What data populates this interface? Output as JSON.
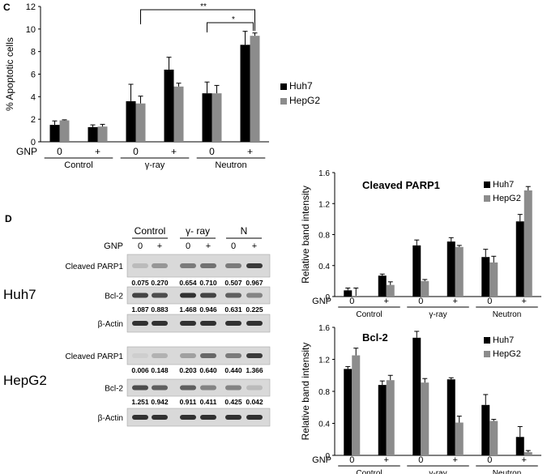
{
  "panels": {
    "c": "C",
    "d": "D"
  },
  "colors": {
    "huh7": "#000000",
    "hepg2": "#8c8c8c",
    "axis": "#000000"
  },
  "chart_data": [
    {
      "id": "apoptotic",
      "type": "bar",
      "ylabel": "% Apoptotic cells",
      "ylim": [
        0,
        12
      ],
      "yticks": [
        "0",
        "2",
        "4",
        "6",
        "8",
        "10",
        "12"
      ],
      "gnp_label": "GNP",
      "gnp_values": [
        "0",
        "+",
        "0",
        "+",
        "0",
        "+"
      ],
      "groups": [
        "Control",
        "γ-ray",
        "Neutron"
      ],
      "series": [
        {
          "name": "Huh7",
          "values": [
            1.5,
            1.3,
            3.6,
            6.4,
            4.3,
            8.6
          ],
          "errors": [
            0.35,
            0.2,
            1.5,
            1.1,
            1.0,
            1.2
          ]
        },
        {
          "name": "HepG2",
          "values": [
            1.9,
            1.35,
            3.4,
            4.9,
            4.3,
            9.4
          ],
          "errors": [
            0.05,
            0.2,
            0.65,
            0.3,
            0.7,
            0.25
          ]
        }
      ],
      "significance": [
        "**",
        "*"
      ]
    },
    {
      "id": "parp1",
      "type": "bar",
      "title": "Cleaved PARP1",
      "ylabel": "Relative band intensity",
      "ylim": [
        0,
        1.6
      ],
      "yticks": [
        "0",
        "0.4",
        "0.8",
        "1.2",
        "1.6"
      ],
      "gnp_label": "GNP",
      "gnp_values": [
        "0",
        "+",
        "0",
        "+",
        "0",
        "+"
      ],
      "groups": [
        "Control",
        "γ-ray",
        "Neutron"
      ],
      "series": [
        {
          "name": "Huh7",
          "values": [
            0.08,
            0.27,
            0.66,
            0.71,
            0.51,
            0.97
          ],
          "errors": [
            0.03,
            0.02,
            0.07,
            0.05,
            0.1,
            0.09
          ]
        },
        {
          "name": "HepG2",
          "values": [
            0.01,
            0.15,
            0.2,
            0.64,
            0.44,
            1.37
          ],
          "errors": [
            0.1,
            0.04,
            0.02,
            0.02,
            0.08,
            0.05
          ]
        }
      ]
    },
    {
      "id": "bcl2",
      "type": "bar",
      "title": "Bcl-2",
      "ylabel": "Relative band intensity",
      "ylim": [
        0,
        1.6
      ],
      "yticks": [
        "0",
        "0.4",
        "0.8",
        "1.2",
        "1.6"
      ],
      "gnp_label": "GNP",
      "gnp_values": [
        "0",
        "+",
        "0",
        "+",
        "0",
        "+"
      ],
      "groups": [
        "Control",
        "γ-ray",
        "Neutron"
      ],
      "series": [
        {
          "name": "Huh7",
          "values": [
            1.08,
            0.88,
            1.47,
            0.95,
            0.63,
            0.23
          ],
          "errors": [
            0.03,
            0.05,
            0.08,
            0.02,
            0.13,
            0.13
          ]
        },
        {
          "name": "HepG2",
          "values": [
            1.25,
            0.94,
            0.91,
            0.41,
            0.43,
            0.04
          ],
          "errors": [
            0.09,
            0.06,
            0.05,
            0.08,
            0.02,
            0.02
          ]
        }
      ]
    }
  ],
  "blots": {
    "groups": [
      "Control",
      "γ- ray",
      "N"
    ],
    "gnp_label": "GNP",
    "gnp_values": [
      "0",
      "+",
      "0",
      "+",
      "0",
      "+"
    ],
    "cell_lines": [
      "Huh7",
      "HepG2"
    ],
    "rows": [
      {
        "label": "Cleaved PARP1",
        "values": [
          "0.075",
          "0.270",
          "0.654",
          "0.710",
          "0.507",
          "0.967"
        ]
      },
      {
        "label": "Bcl-2",
        "values": [
          "1.087",
          "0.883",
          "1.468",
          "0.946",
          "0.631",
          "0.225"
        ]
      },
      {
        "label": "β-Actin",
        "values": []
      },
      {
        "label": "Cleaved PARP1",
        "values": [
          "0.006",
          "0.148",
          "0.203",
          "0.640",
          "0.440",
          "1.366"
        ]
      },
      {
        "label": "Bcl-2",
        "values": [
          "1.251",
          "0.942",
          "0.911",
          "0.411",
          "0.425",
          "0.042"
        ]
      },
      {
        "label": "β-Actin",
        "values": []
      }
    ]
  }
}
